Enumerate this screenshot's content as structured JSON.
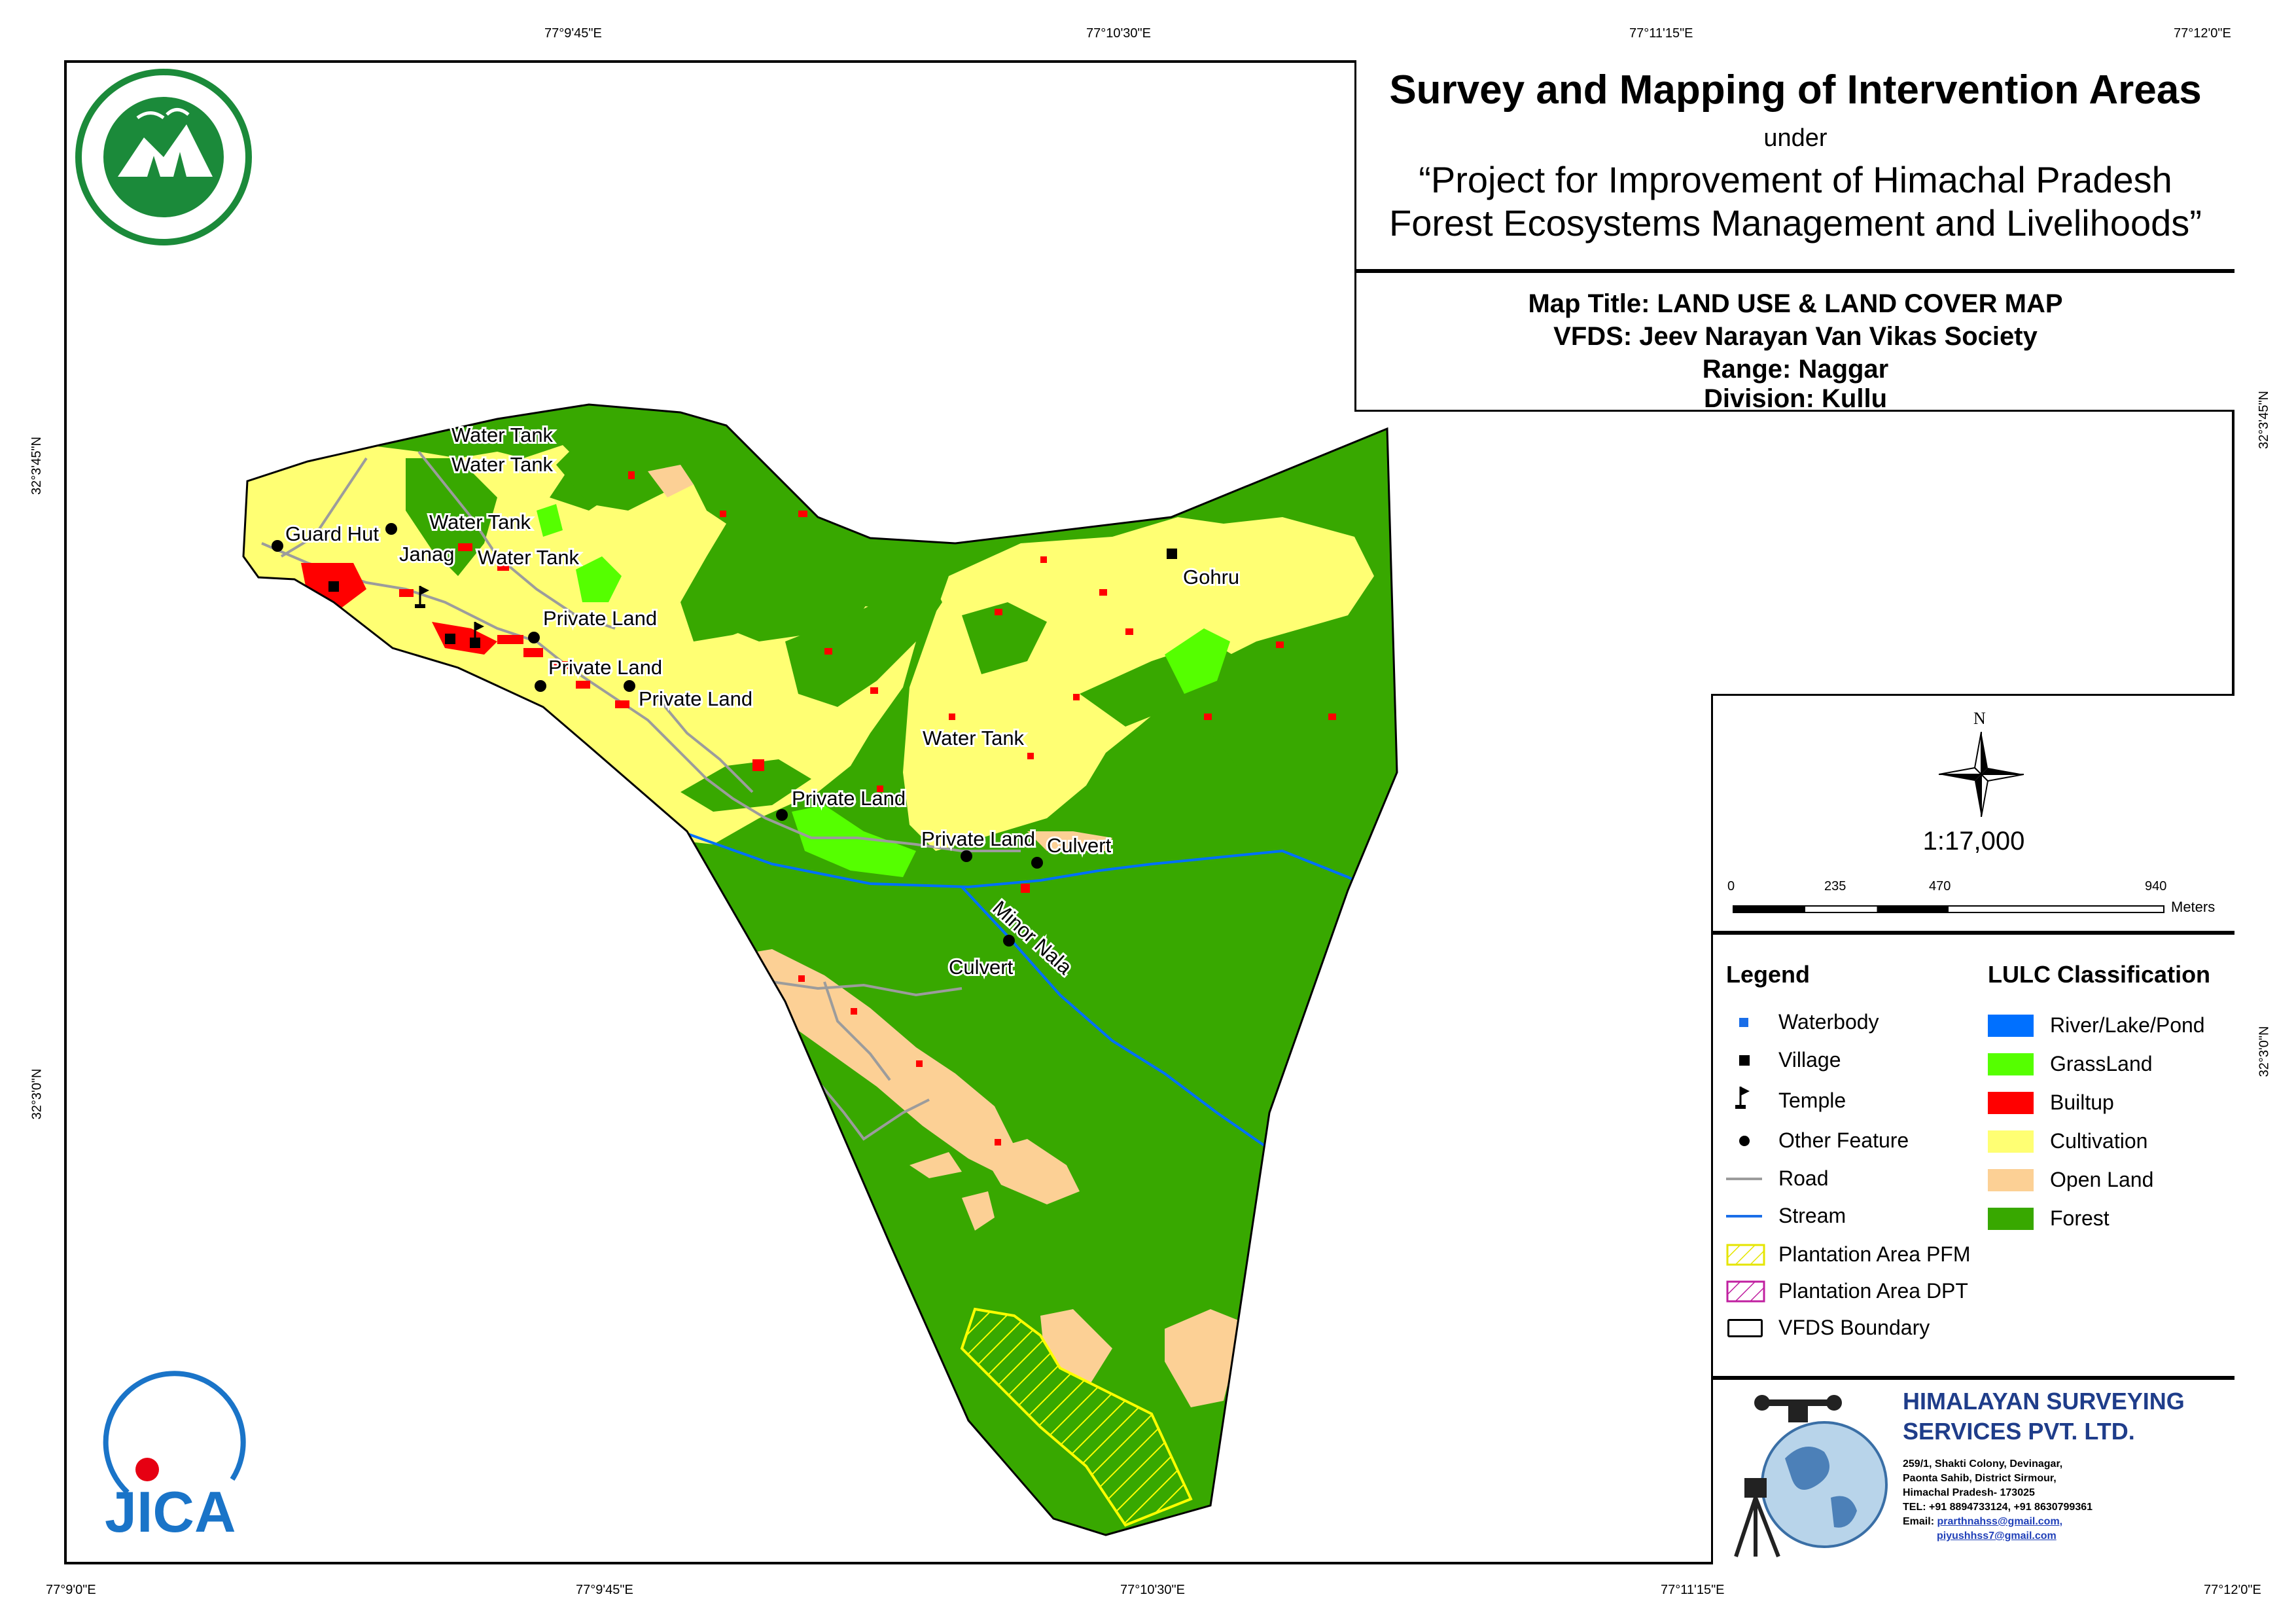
{
  "title": {
    "main": "Survey and Mapping of Intervention Areas",
    "under": "under",
    "project_line1": "“Project for Improvement of Himachal Pradesh",
    "project_line2": "Forest Ecosystems Management and Livelihoods”"
  },
  "info": {
    "map_title": "Map Title: LAND USE & LAND COVER MAP",
    "vfds": "VFDS: Jeev Narayan Van Vikas Society",
    "range": "Range: Naggar",
    "division": "Division: Kullu"
  },
  "coordinates": {
    "top": [
      "77°9'45\"E",
      "77°10'30\"E",
      "77°11'15\"E",
      "77°12'0\"E"
    ],
    "bottom": [
      "77°9'0\"E",
      "77°9'45\"E",
      "77°10'30\"E",
      "77°11'15\"E",
      "77°12'0\"E"
    ],
    "left": [
      "32°3'45\"N",
      "32°3'0\"N"
    ],
    "right": [
      "32°3'45\"N",
      "32°3'0\"N"
    ]
  },
  "north_arrow": {
    "letter": "N"
  },
  "scale": {
    "ratio": "1:17,000",
    "ticks": [
      "0",
      "235",
      "470",
      "940"
    ],
    "unit": "Meters"
  },
  "legend": {
    "heading": "Legend",
    "items": [
      {
        "label": "Waterbody",
        "icon": "waterbody-square"
      },
      {
        "label": "Village",
        "icon": "village-square"
      },
      {
        "label": "Temple",
        "icon": "temple-flag"
      },
      {
        "label": "Other Feature",
        "icon": "dot"
      },
      {
        "label": "Road",
        "icon": "gray-line"
      },
      {
        "label": "Stream",
        "icon": "blue-line"
      },
      {
        "label": "Plantation Area PFM",
        "icon": "yellow-hatch"
      },
      {
        "label": "Plantation Area DPT",
        "icon": "magenta-hatch"
      },
      {
        "label": "VFDS Boundary",
        "icon": "black-outline"
      }
    ]
  },
  "lulc": {
    "heading": "LULC Classification",
    "classes": [
      {
        "label": "River/Lake/Pond",
        "color": "#0070ff"
      },
      {
        "label": "GrassLand",
        "color": "#55ff00"
      },
      {
        "label": "Builtup",
        "color": "#ff0000"
      },
      {
        "label": "Cultivation",
        "color": "#ffff73"
      },
      {
        "label": "Open Land",
        "color": "#fcd095"
      },
      {
        "label": "Forest",
        "color": "#38a800"
      }
    ]
  },
  "map_labels": {
    "water_tank_1": "Water Tank",
    "water_tank_2": "Water Tank",
    "water_tank_3": "Water Tank",
    "water_tank_4": "Water Tank",
    "water_tank_5": "Water Tank",
    "guard_hut": "Guard Hut",
    "janag": "Janag",
    "private_land_1": "Private Land",
    "private_land_2": "Private Land",
    "private_land_3": "Private Land",
    "private_land_4": "Private Land",
    "private_land_5": "Private Land",
    "gohru": "Gohru",
    "culvert_1": "Culvert",
    "culvert_2": "Culvert",
    "minor_nala": "Minor Nala"
  },
  "logos": {
    "forest_dept": "Himachal Pradesh Forest Department seal",
    "jica": "JICA"
  },
  "company": {
    "name_line1": "HIMALAYAN SURVEYING",
    "name_line2": "SERVICES PVT. LTD.",
    "address1": "259/1, Shakti Colony, Devinagar,",
    "address2": "Paonta Sahib, District Sirmour,",
    "address3": "Himachal Pradesh- 173025",
    "tel": "TEL: +91 8894733124, +91 8630799361",
    "email_label": "Email:",
    "email1": "prarthnahss@gmail.com,",
    "email2": "piyushhss7@gmail.com"
  }
}
